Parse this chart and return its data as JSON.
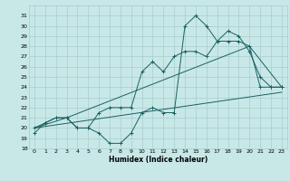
{
  "xlabel": "Humidex (Indice chaleur)",
  "xlim": [
    -0.5,
    23.5
  ],
  "ylim": [
    18,
    32
  ],
  "yticks": [
    18,
    19,
    20,
    21,
    22,
    23,
    24,
    25,
    26,
    27,
    28,
    29,
    30,
    31
  ],
  "xticks": [
    0,
    1,
    2,
    3,
    4,
    5,
    6,
    7,
    8,
    9,
    10,
    11,
    12,
    13,
    14,
    15,
    16,
    17,
    18,
    19,
    20,
    21,
    22,
    23
  ],
  "bg_color": "#c8e8e8",
  "grid_color": "#a8cccc",
  "line_color": "#1a6060",
  "series1_x": [
    0,
    1,
    2,
    3,
    4,
    5,
    6,
    7,
    8,
    9,
    10,
    11,
    12,
    13,
    14,
    15,
    16,
    17,
    18,
    19,
    20,
    21,
    22,
    23
  ],
  "series1_y": [
    19.5,
    20.5,
    21.0,
    21.0,
    20.0,
    20.0,
    19.5,
    18.5,
    18.5,
    19.5,
    21.5,
    22.0,
    21.5,
    21.5,
    30.0,
    31.0,
    30.0,
    28.5,
    29.5,
    29.0,
    27.5,
    25.0,
    24.0,
    24.0
  ],
  "series2_x": [
    0,
    1,
    2,
    3,
    4,
    5,
    6,
    7,
    8,
    9,
    10,
    11,
    12,
    13,
    14,
    15,
    16,
    17,
    18,
    19,
    20,
    21,
    22,
    23
  ],
  "series2_y": [
    20.0,
    20.5,
    21.0,
    21.0,
    20.0,
    20.0,
    21.5,
    22.0,
    22.0,
    22.0,
    25.5,
    26.5,
    25.5,
    27.0,
    27.5,
    27.5,
    27.0,
    28.5,
    28.5,
    28.5,
    28.0,
    24.0,
    24.0,
    24.0
  ],
  "series3_x": [
    0,
    3,
    20,
    23
  ],
  "series3_y": [
    20.0,
    21.0,
    28.0,
    24.0
  ],
  "series4_x": [
    0,
    23
  ],
  "series4_y": [
    20.0,
    23.5
  ]
}
